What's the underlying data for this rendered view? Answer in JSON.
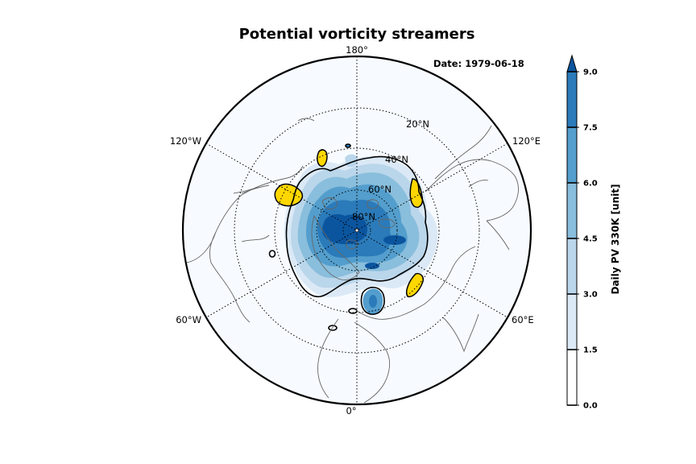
{
  "title": "Potential vorticity streamers",
  "date_label": "Date: 1979-06-18",
  "colorbar": {
    "label": "Daily PV 330K [unit]",
    "ticks": [
      "0.0",
      "1.5",
      "3.0",
      "4.5",
      "6.0",
      "7.5",
      "9.0"
    ],
    "levels": [
      0.0,
      1.5,
      3.0,
      4.5,
      6.0,
      7.5,
      9.0
    ],
    "colors": [
      "#f7fbff",
      "#dbe9f6",
      "#bad6eb",
      "#89bedc",
      "#539ecd",
      "#2b7bba",
      "#0b559f"
    ],
    "extend": "max"
  },
  "map": {
    "projection": "north-polar-stereographic",
    "lon_labels": [
      {
        "text": "180°",
        "lon": 180
      },
      {
        "text": "120°E",
        "lon": 120
      },
      {
        "text": "60°E",
        "lon": 60
      },
      {
        "text": "0°",
        "lon": 0
      },
      {
        "text": "60°W",
        "lon": -60
      },
      {
        "text": "120°W",
        "lon": -120
      }
    ],
    "lat_labels": [
      {
        "text": "20°N",
        "lat": 20
      },
      {
        "text": "40°N",
        "lat": 40
      },
      {
        "text": "60°N",
        "lat": 60
      },
      {
        "text": "80°N",
        "lat": 80
      }
    ],
    "contour_line_color": "#000000",
    "streamer_color": "#ffd700",
    "coastline_color": "#666666"
  }
}
